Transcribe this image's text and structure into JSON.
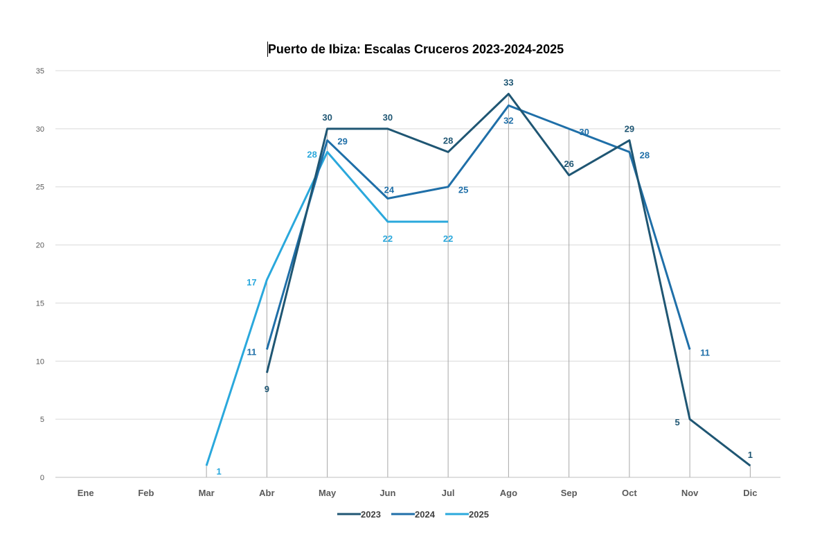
{
  "chart_data": {
    "type": "line",
    "title": "Puerto de Ibiza: Escalas Cruceros 2023-2024-2025",
    "xlabel": "",
    "ylabel": "",
    "categories": [
      "Ene",
      "Feb",
      "Mar",
      "Abr",
      "May",
      "Jun",
      "Jul",
      "Ago",
      "Sep",
      "Oct",
      "Nov",
      "Dic"
    ],
    "y_ticks": [
      "0",
      "5",
      "10",
      "15",
      "20",
      "25",
      "30",
      "35"
    ],
    "ylim": [
      0,
      35
    ],
    "grid": true,
    "legend_position": "bottom",
    "series": [
      {
        "name": "2023",
        "color": "#1f5673",
        "values": [
          null,
          null,
          null,
          9,
          30,
          30,
          28,
          33,
          26,
          29,
          5,
          1
        ],
        "labels": [
          "",
          "",
          "",
          "9",
          "30",
          "30",
          "28",
          "33",
          "26",
          "29",
          "5",
          "1"
        ]
      },
      {
        "name": "2024",
        "color": "#1f6fa8",
        "values": [
          null,
          null,
          null,
          11,
          29,
          24,
          25,
          32,
          30,
          28,
          11,
          null
        ],
        "labels": [
          "",
          "",
          "",
          "11",
          "29",
          "24",
          "25",
          "32",
          "30",
          "28",
          "11",
          ""
        ]
      },
      {
        "name": "2025",
        "color": "#2aa8dc",
        "values": [
          null,
          null,
          1,
          17,
          28,
          22,
          22,
          null,
          null,
          null,
          null,
          null
        ],
        "labels": [
          "",
          "",
          "1",
          "17",
          "28",
          "22",
          "22",
          "",
          "",
          "",
          "",
          ""
        ]
      }
    ]
  }
}
